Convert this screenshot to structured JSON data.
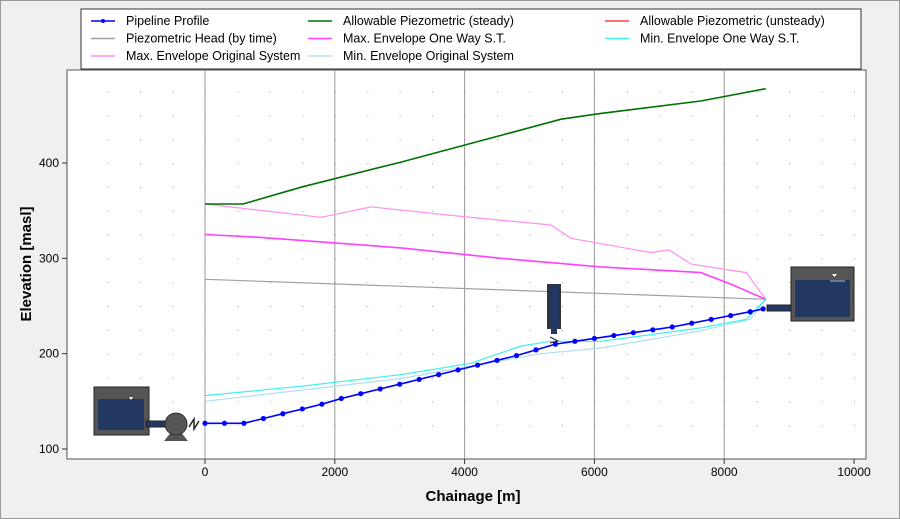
{
  "chart_data": {
    "type": "line",
    "xlabel": "Chainage [m]",
    "ylabel": "Elevation [masl]",
    "xlim": [
      -1500,
      10000
    ],
    "ylim": [
      100,
      490
    ],
    "xticks": [
      0,
      2000,
      4000,
      6000,
      8000,
      10000
    ],
    "yticks": [
      100,
      200,
      300,
      400
    ],
    "grid": true,
    "legend_position": "top",
    "series": [
      {
        "name": "Pipeline Profile",
        "color": "#0000ff",
        "markers": true,
        "x": [
          0,
          300,
          600,
          900,
          1200,
          1500,
          1800,
          2100,
          2400,
          2700,
          3000,
          3300,
          3600,
          3900,
          4200,
          4500,
          4800,
          5100,
          5400,
          5700,
          6000,
          6300,
          6600,
          6900,
          7200,
          7500,
          7800,
          8100,
          8400,
          8600
        ],
        "y": [
          127,
          127,
          127,
          132,
          137,
          142,
          147,
          153,
          158,
          163,
          168,
          173,
          178,
          183,
          188,
          193,
          198,
          204,
          210,
          213,
          216,
          219,
          222,
          225,
          228,
          232,
          236,
          240,
          244,
          247
        ]
      },
      {
        "name": "Allowable Piezometric (steady)",
        "color": "#007000",
        "x": [
          0,
          585,
          1500,
          3020,
          4560,
          5485,
          6100,
          7640,
          8640
        ],
        "y": [
          357,
          357,
          375,
          401,
          429,
          446,
          452,
          465,
          478
        ]
      },
      {
        "name": "Allowable Piezometric (unsteady)",
        "color": "#ff4040",
        "x": [],
        "y": []
      },
      {
        "name": "Piezometric Head (by time)",
        "color": "#a0a0a0",
        "x": [
          0,
          8640
        ],
        "y": [
          278,
          257
        ]
      },
      {
        "name": "Max.  Envelope One Way S.T.",
        "color": "#ff40ff",
        "x": [
          0,
          860,
          3020,
          4560,
          6100,
          7640,
          8100,
          8640
        ],
        "y": [
          325,
          322,
          311,
          300,
          291,
          285,
          273,
          257
        ]
      },
      {
        "name": "Min.  Envelope One Way S.T.",
        "color": "#40f0f0",
        "x": [
          0,
          1500,
          3020,
          4100,
          4870,
          5330,
          6100,
          7640,
          8340,
          8640
        ],
        "y": [
          156,
          166,
          178,
          190,
          208,
          213,
          213,
          227,
          236,
          257
        ]
      },
      {
        "name": "Max.  Envelope Original System",
        "color": "#ff90f0",
        "x": [
          0,
          1790,
          2560,
          3790,
          5330,
          5640,
          6870,
          7150,
          7490,
          8340,
          8640
        ],
        "y": [
          357,
          343,
          354,
          345,
          335,
          321,
          306,
          309,
          294,
          285,
          257
        ]
      },
      {
        "name": "Min.  Envelope Original System",
        "color": "#b0e0f0",
        "x": [
          0,
          3020,
          5180,
          6100,
          7640,
          8400,
          8640
        ],
        "y": [
          150,
          174,
          200,
          206,
          224,
          236,
          257
        ]
      }
    ]
  }
}
